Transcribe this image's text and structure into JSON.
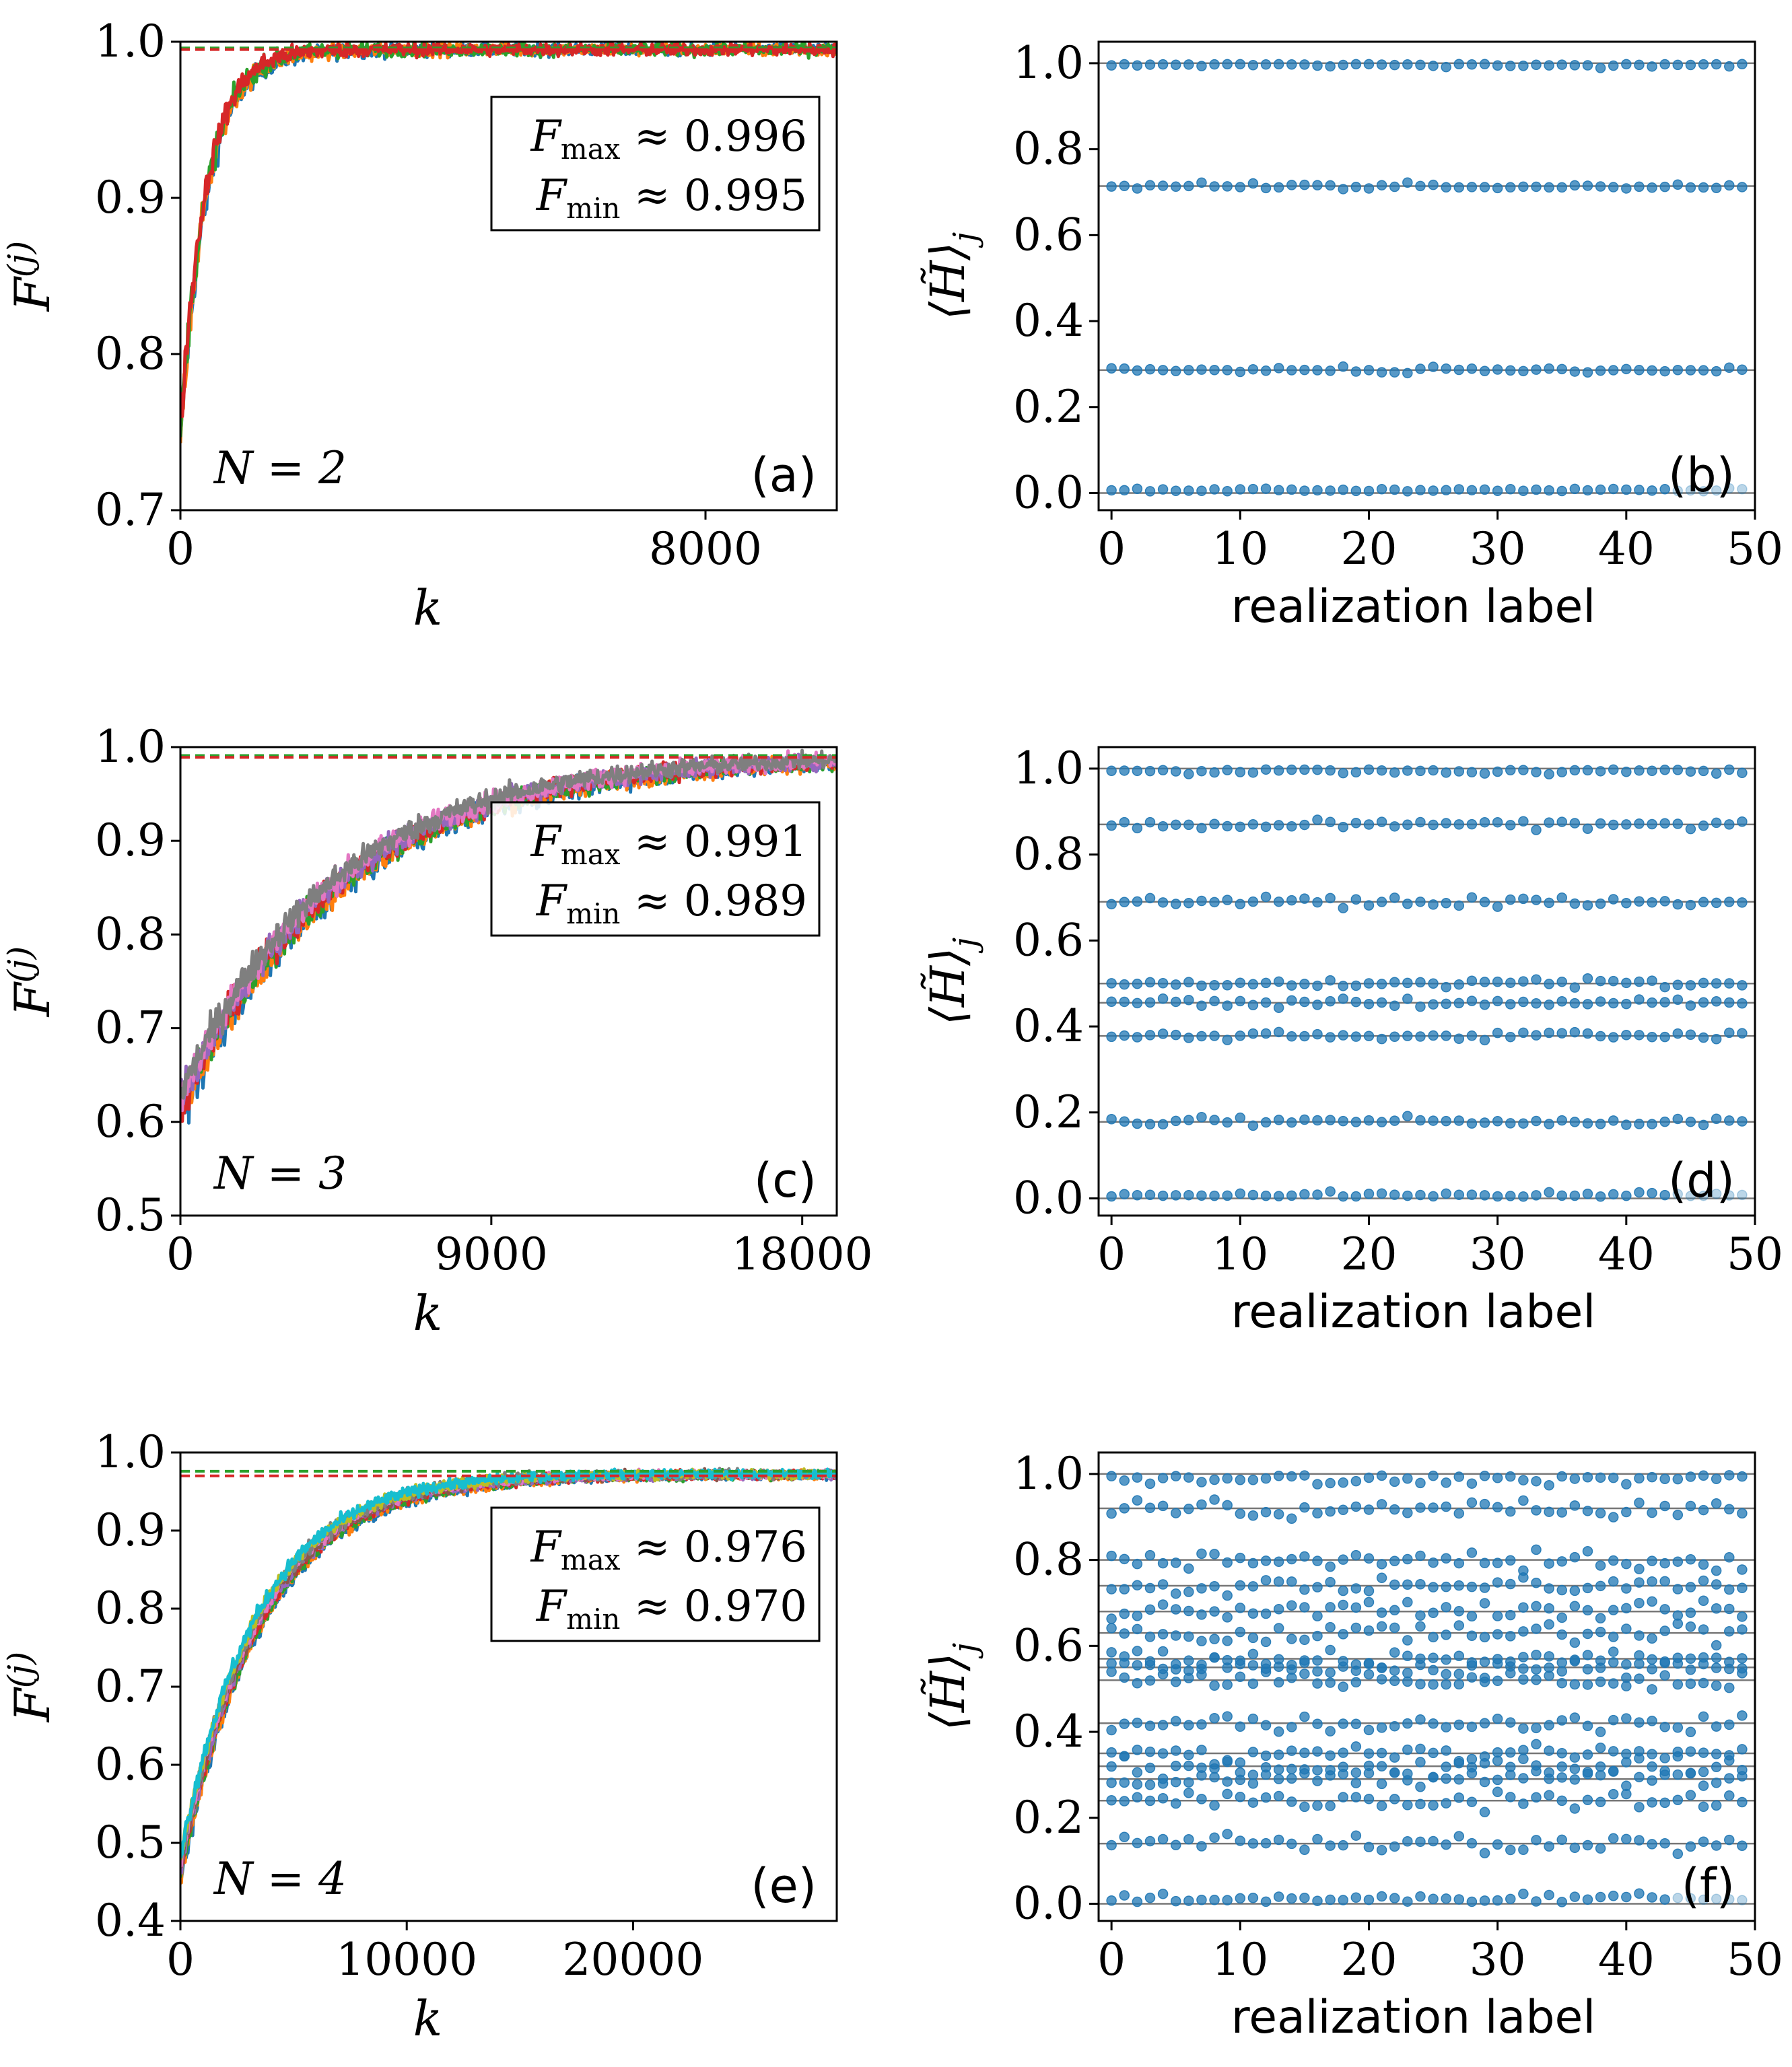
{
  "chart_data": [
    {
      "id": "a",
      "type": "line",
      "panel_label": "(a)",
      "xlabel": "k",
      "ylabel": "F(j)",
      "xlim": [
        0,
        10000
      ],
      "ylim": [
        0.7,
        1.0
      ],
      "xticks": [
        0,
        8000
      ],
      "xtick_labels": [
        "0",
        "8000"
      ],
      "yticks": [
        0.7,
        0.8,
        0.9,
        1.0
      ],
      "ytick_labels": [
        "0.7",
        "0.8",
        "0.9",
        "1.0"
      ],
      "annotation": {
        "fmax_label": "F",
        "fmax_sub": "max",
        "fmax_value": "≈ 0.996",
        "fmin_label": "F",
        "fmin_sub": "min",
        "fmin_value": "≈ 0.995"
      },
      "n_label": "N = 2",
      "ref_lines": [
        0.996,
        0.995
      ],
      "ref_colors": [
        "#2ca02c",
        "#d62728"
      ],
      "series_colors": [
        "#1f77b4",
        "#ff7f0e",
        "#2ca02c",
        "#d62728"
      ],
      "curve": {
        "start": 0.75,
        "end": 0.995,
        "tau": 400,
        "noise": 0.012,
        "final_noise": 0.004
      }
    },
    {
      "id": "b",
      "type": "scatter",
      "panel_label": "(b)",
      "xlabel": "realization label",
      "ylabel": "⟨H̃⟩j",
      "xlim": [
        -1,
        50
      ],
      "ylim": [
        -0.04,
        1.05
      ],
      "xticks": [
        0,
        10,
        20,
        30,
        40,
        50
      ],
      "xtick_labels": [
        "0",
        "10",
        "20",
        "30",
        "40",
        "50"
      ],
      "yticks": [
        0.0,
        0.2,
        0.4,
        0.6,
        0.8,
        1.0
      ],
      "ytick_labels": [
        "0.0",
        "0.2",
        "0.4",
        "0.6",
        "0.8",
        "1.0"
      ],
      "levels": [
        0.0,
        0.286,
        0.714,
        1.0
      ],
      "point_color": "#1f77b4",
      "scatter_noise": 0.006
    },
    {
      "id": "c",
      "type": "line",
      "panel_label": "(c)",
      "xlabel": "k",
      "ylabel": "F(j)",
      "xlim": [
        0,
        19000
      ],
      "ylim": [
        0.5,
        1.0
      ],
      "xticks": [
        0,
        9000,
        18000
      ],
      "xtick_labels": [
        "0",
        "9000",
        "18000"
      ],
      "yticks": [
        0.5,
        0.6,
        0.7,
        0.8,
        0.9,
        1.0
      ],
      "ytick_labels": [
        "0.5",
        "0.6",
        "0.7",
        "0.8",
        "0.9",
        "1.0"
      ],
      "annotation": {
        "fmax_label": "F",
        "fmax_sub": "max",
        "fmax_value": "≈ 0.991",
        "fmin_label": "F",
        "fmin_sub": "min",
        "fmin_value": "≈ 0.989"
      },
      "n_label": "N = 3",
      "ref_lines": [
        0.991,
        0.989
      ],
      "ref_colors": [
        "#2ca02c",
        "#d62728"
      ],
      "series_colors": [
        "#1f77b4",
        "#ff7f0e",
        "#2ca02c",
        "#d62728",
        "#9467bd",
        "#e377c2",
        "#7f7f7f"
      ],
      "curve": {
        "start": 0.62,
        "end": 0.99,
        "tau": 4500,
        "noise": 0.018,
        "final_noise": 0.006
      }
    },
    {
      "id": "d",
      "type": "scatter",
      "panel_label": "(d)",
      "xlabel": "realization label",
      "ylabel": "⟨H̃⟩j",
      "xlim": [
        -1,
        50
      ],
      "ylim": [
        -0.04,
        1.05
      ],
      "xticks": [
        0,
        10,
        20,
        30,
        40,
        50
      ],
      "xtick_labels": [
        "0",
        "10",
        "20",
        "30",
        "40",
        "50"
      ],
      "yticks": [
        0.0,
        0.2,
        0.4,
        0.6,
        0.8,
        1.0
      ],
      "ytick_labels": [
        "0.0",
        "0.2",
        "0.4",
        "0.6",
        "0.8",
        "1.0"
      ],
      "levels": [
        0.0,
        0.178,
        0.378,
        0.455,
        0.5,
        0.69,
        0.87,
        1.0
      ],
      "point_color": "#1f77b4",
      "scatter_noise": 0.008
    },
    {
      "id": "e",
      "type": "line",
      "panel_label": "(e)",
      "xlabel": "k",
      "ylabel": "F(j)",
      "xlim": [
        0,
        29000
      ],
      "ylim": [
        0.4,
        1.0
      ],
      "xticks": [
        0,
        10000,
        20000
      ],
      "xtick_labels": [
        "0",
        "10000",
        "20000"
      ],
      "yticks": [
        0.4,
        0.5,
        0.6,
        0.7,
        0.8,
        0.9,
        1.0
      ],
      "ytick_labels": [
        "0.4",
        "0.5",
        "0.6",
        "0.7",
        "0.8",
        "0.9",
        "1.0"
      ],
      "annotation": {
        "fmax_label": "F",
        "fmax_sub": "max",
        "fmax_value": "≈ 0.976",
        "fmin_label": "F",
        "fmin_sub": "min",
        "fmin_value": "≈ 0.970"
      },
      "n_label": "N = 4",
      "ref_lines": [
        0.976,
        0.97
      ],
      "ref_colors": [
        "#2ca02c",
        "#d62728"
      ],
      "series_colors": [
        "#1f77b4",
        "#ff7f0e",
        "#2ca02c",
        "#d62728",
        "#9467bd",
        "#8c564b",
        "#e377c2",
        "#7f7f7f",
        "#bcbd22",
        "#17becf"
      ],
      "curve": {
        "start": 0.47,
        "end": 0.972,
        "tau": 3500,
        "noise": 0.012,
        "final_noise": 0.005
      }
    },
    {
      "id": "f",
      "type": "scatter",
      "panel_label": "(f)",
      "xlabel": "realization label",
      "ylabel": "⟨H̃⟩j",
      "xlim": [
        -1,
        50
      ],
      "ylim": [
        -0.04,
        1.05
      ],
      "xticks": [
        0,
        10,
        20,
        30,
        40,
        50
      ],
      "xtick_labels": [
        "0",
        "10",
        "20",
        "30",
        "40",
        "50"
      ],
      "yticks": [
        0.0,
        0.2,
        0.4,
        0.6,
        0.8,
        1.0
      ],
      "ytick_labels": [
        "0.0",
        "0.2",
        "0.4",
        "0.6",
        "0.8",
        "1.0"
      ],
      "levels": [
        0.0,
        0.14,
        0.24,
        0.29,
        0.32,
        0.35,
        0.42,
        0.52,
        0.55,
        0.57,
        0.63,
        0.68,
        0.74,
        0.8,
        0.92,
        1.0
      ],
      "point_color": "#1f77b4",
      "scatter_noise": 0.018
    }
  ]
}
